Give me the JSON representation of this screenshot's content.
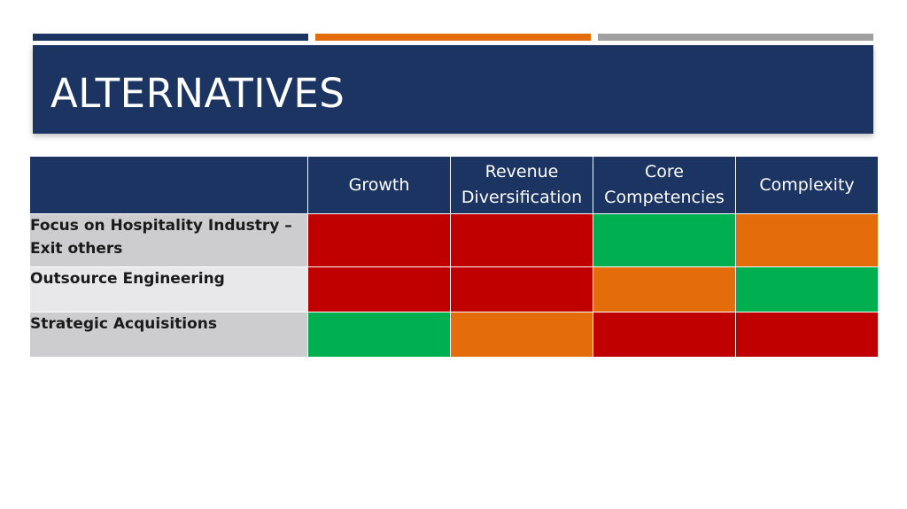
{
  "slide": {
    "title": "ALTERNATIVES",
    "accent_colors": [
      "#1c3461",
      "#e46c0a",
      "#a0a0a0"
    ],
    "title_band_color": "#1c3461"
  },
  "matrix": {
    "header_color": "#1c3461",
    "row_label_colors": [
      "#cdcdcf",
      "#e8e8ea",
      "#cdcdcf"
    ],
    "status_colors": {
      "red": "#c00000",
      "green": "#00b050",
      "orange": "#e46c0a"
    },
    "columns": [
      "Growth",
      "Revenue Diversification",
      "Core Competencies",
      "Complexity"
    ],
    "rows": [
      {
        "label": "Focus on Hospitality Industry – Exit others",
        "ratings": [
          "red",
          "red",
          "green",
          "orange"
        ]
      },
      {
        "label": "Outsource Engineering",
        "ratings": [
          "red",
          "red",
          "orange",
          "green"
        ]
      },
      {
        "label": "Strategic Acquisitions",
        "ratings": [
          "green",
          "orange",
          "red",
          "red"
        ]
      }
    ]
  }
}
